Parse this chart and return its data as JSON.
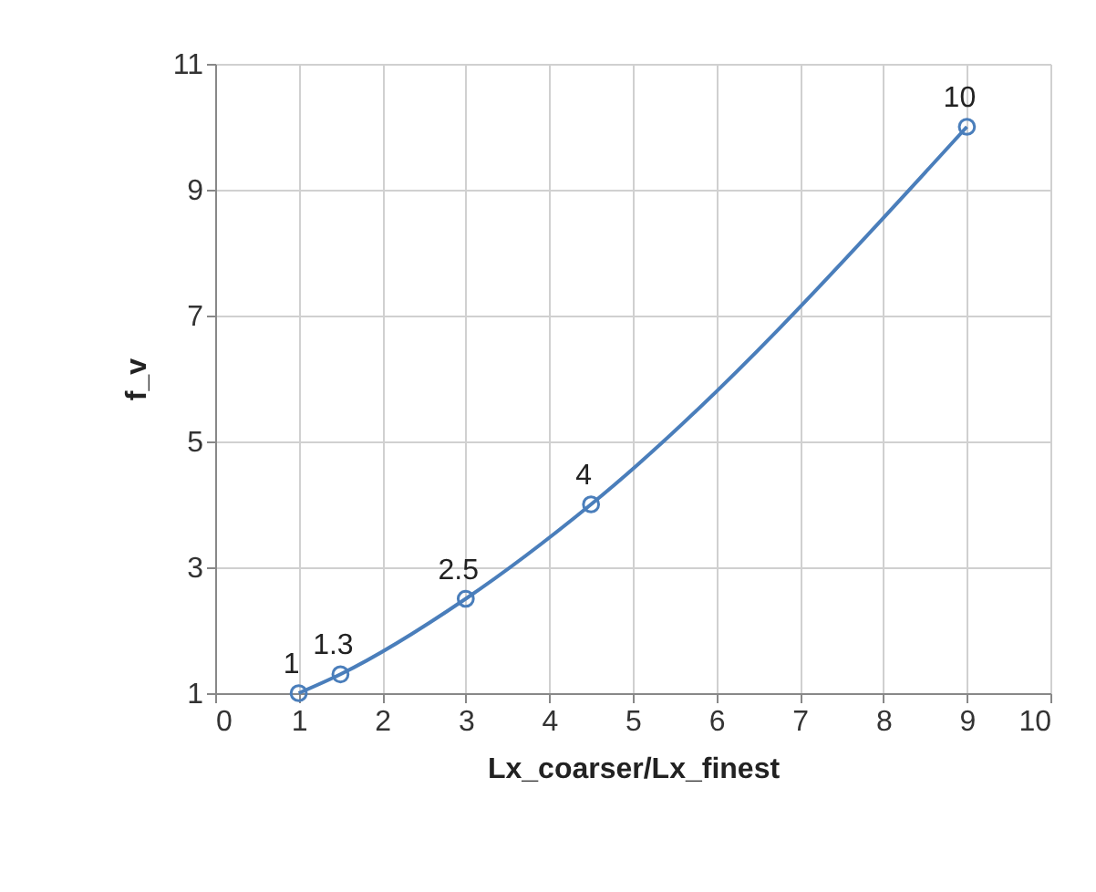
{
  "chart_data": {
    "type": "line",
    "xlabel": "Lx_coarser/Lx_finest",
    "ylabel": "f_v",
    "x": [
      1,
      1.5,
      3,
      4.5,
      9
    ],
    "series": [
      {
        "color": "#4a7ebb",
        "values": [
          1,
          1.3,
          2.5,
          4,
          10
        ]
      }
    ],
    "xlim": [
      0,
      10
    ],
    "xticks": [
      0,
      1,
      2,
      3,
      4,
      5,
      6,
      7,
      8,
      9,
      10
    ],
    "ylim": [
      1,
      11
    ],
    "yticks": [
      1,
      3,
      5,
      7,
      9,
      11
    ],
    "grid": true,
    "marker": "circle",
    "line_style": "solid",
    "data_labels": true
  }
}
